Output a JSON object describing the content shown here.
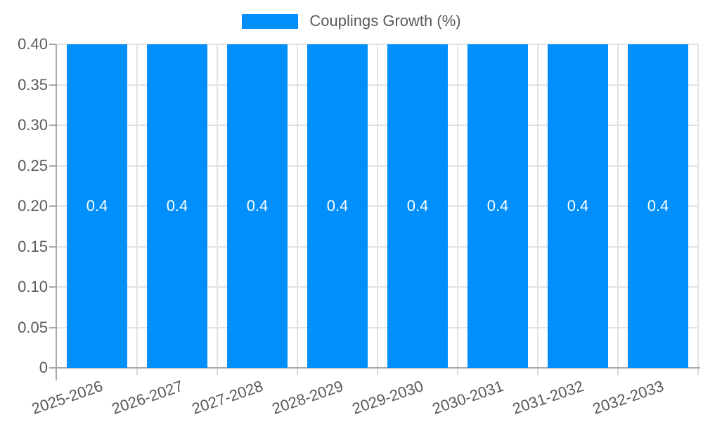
{
  "legend": {
    "label": "Couplings Growth (%)"
  },
  "colors": {
    "bar": "#008FFB",
    "bar_label": "#FFFFFF",
    "axis_label": "#595959",
    "grid": "#E3E3E3",
    "tick": "#D9D9D9",
    "axis_line": "#A8A8A8",
    "background": "#FFFFFF"
  },
  "chart_data": {
    "type": "bar",
    "title": "",
    "xlabel": "",
    "ylabel": "",
    "legend_position": "top",
    "grid": "on",
    "series_name": "Couplings Growth (%)",
    "categories": [
      "2025-2026",
      "2026-2027",
      "2027-2028",
      "2028-2029",
      "2029-2030",
      "2030-2031",
      "2031-2032",
      "2032-2033"
    ],
    "values": [
      0.4,
      0.4,
      0.4,
      0.4,
      0.4,
      0.4,
      0.4,
      0.4
    ],
    "bar_labels": [
      "0.4",
      "0.4",
      "0.4",
      "0.4",
      "0.4",
      "0.4",
      "0.4",
      "0.4"
    ],
    "ylim": [
      0,
      0.4
    ],
    "y_tick_values": [
      0,
      0.05,
      0.1,
      0.15,
      0.2,
      0.25,
      0.3,
      0.35,
      0.4
    ],
    "y_tick_labels": [
      "0",
      "0.05",
      "0.10",
      "0.15",
      "0.20",
      "0.25",
      "0.30",
      "0.35",
      "0.40"
    ]
  }
}
